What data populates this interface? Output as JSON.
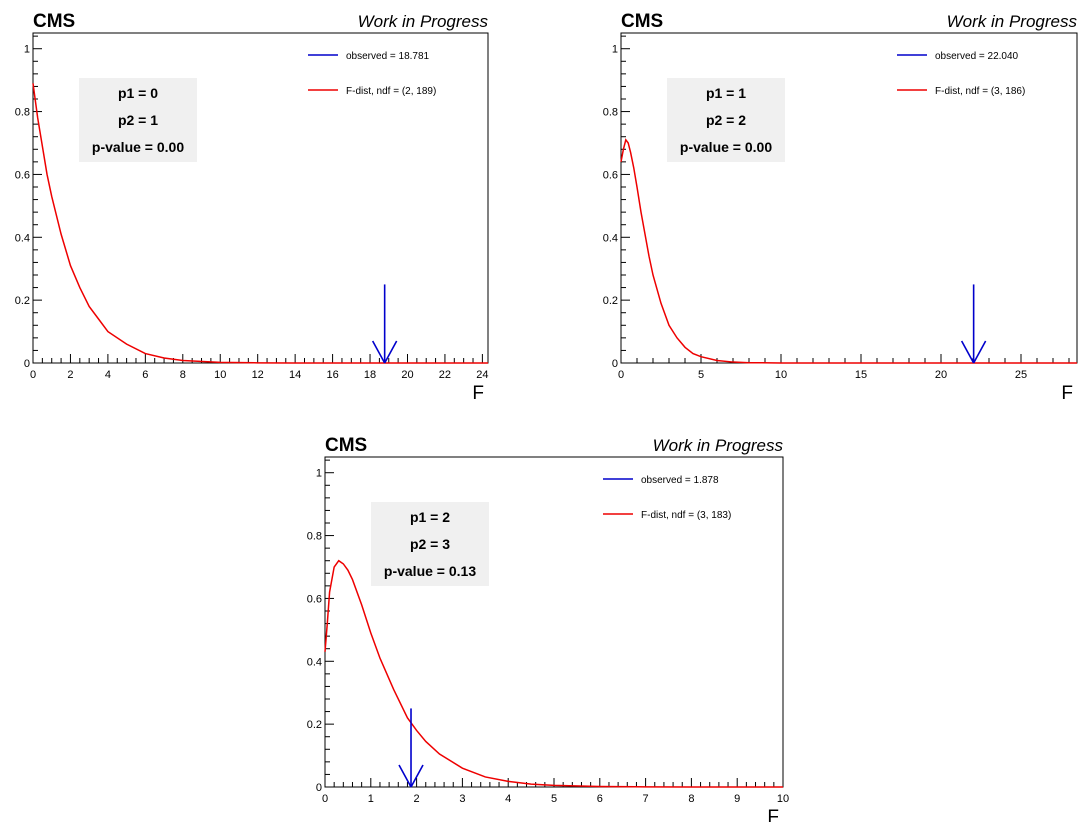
{
  "chart_data": [
    {
      "type": "line",
      "label_left": "CMS",
      "label_right": "Work in Progress",
      "xlabel": "F",
      "ylabel": "",
      "xlim": [
        0,
        24.3
      ],
      "ylim": [
        0,
        1.05
      ],
      "x_ticks": [
        "0",
        "2",
        "4",
        "6",
        "8",
        "10",
        "12",
        "14",
        "16",
        "18",
        "20",
        "22",
        "24"
      ],
      "x_tick_values": [
        0,
        2,
        4,
        6,
        8,
        10,
        12,
        14,
        16,
        18,
        20,
        22,
        24
      ],
      "y_ticks": [
        "0",
        "0.2",
        "0.4",
        "0.6",
        "0.8",
        "1"
      ],
      "y_tick_values": [
        0,
        0.2,
        0.4,
        0.6,
        0.8,
        1
      ],
      "info_box": [
        "p1 = 0",
        "p2 = 1",
        "p-value = 0.00"
      ],
      "legend": [
        {
          "label": "observed = 18.781",
          "color": "#0000cc"
        },
        {
          "label": "F-dist, ndf = (2, 189)",
          "color": "#ee0000"
        }
      ],
      "observed": 18.781,
      "series": [
        {
          "name": "F-dist, ndf = (2, 189)",
          "color": "#ee0000",
          "x": [
            0,
            0.25,
            0.5,
            0.75,
            1,
            1.5,
            2,
            2.5,
            3,
            3.5,
            4,
            5,
            6,
            7,
            8,
            10,
            12,
            14,
            16,
            18,
            20,
            22,
            24,
            24.3
          ],
          "y": [
            0.89,
            0.78,
            0.69,
            0.6,
            0.53,
            0.41,
            0.31,
            0.24,
            0.18,
            0.14,
            0.1,
            0.06,
            0.03,
            0.016,
            0.008,
            0.002,
            0.0005,
            0.0001,
            0,
            0,
            0,
            0,
            0,
            0
          ]
        }
      ]
    },
    {
      "type": "line",
      "label_left": "CMS",
      "label_right": "Work in Progress",
      "xlabel": "F",
      "ylabel": "",
      "xlim": [
        0,
        28.5
      ],
      "ylim": [
        0,
        1.05
      ],
      "x_ticks": [
        "0",
        "5",
        "10",
        "15",
        "20",
        "25"
      ],
      "x_tick_values": [
        0,
        5,
        10,
        15,
        20,
        25
      ],
      "y_ticks": [
        "0",
        "0.2",
        "0.4",
        "0.6",
        "0.8",
        "1"
      ],
      "y_tick_values": [
        0,
        0.2,
        0.4,
        0.6,
        0.8,
        1
      ],
      "info_box": [
        "p1 = 1",
        "p2 = 2",
        "p-value = 0.00"
      ],
      "legend": [
        {
          "label": "observed = 22.040",
          "color": "#0000cc"
        },
        {
          "label": "F-dist, ndf = (3, 186)",
          "color": "#ee0000"
        }
      ],
      "observed": 22.04,
      "series": [
        {
          "name": "F-dist, ndf = (3, 186)",
          "color": "#ee0000",
          "x": [
            0,
            0.15,
            0.3,
            0.45,
            0.6,
            0.8,
            1,
            1.25,
            1.5,
            1.75,
            2,
            2.5,
            3,
            3.5,
            4,
            4.5,
            5,
            6,
            7,
            8,
            10,
            15,
            20,
            25,
            28.5
          ],
          "y": [
            0.64,
            0.68,
            0.71,
            0.7,
            0.67,
            0.62,
            0.56,
            0.48,
            0.41,
            0.34,
            0.28,
            0.19,
            0.12,
            0.08,
            0.05,
            0.03,
            0.02,
            0.008,
            0.003,
            0.001,
            0.0002,
            0,
            0,
            0,
            0
          ]
        }
      ]
    },
    {
      "type": "line",
      "label_left": "CMS",
      "label_right": "Work in Progress",
      "xlabel": "F",
      "ylabel": "",
      "xlim": [
        0,
        10
      ],
      "ylim": [
        0,
        1.05
      ],
      "x_ticks": [
        "0",
        "1",
        "2",
        "3",
        "4",
        "5",
        "6",
        "7",
        "8",
        "9",
        "10"
      ],
      "x_tick_values": [
        0,
        1,
        2,
        3,
        4,
        5,
        6,
        7,
        8,
        9,
        10
      ],
      "y_ticks": [
        "0",
        "0.2",
        "0.4",
        "0.6",
        "0.8",
        "1"
      ],
      "y_tick_values": [
        0,
        0.2,
        0.4,
        0.6,
        0.8,
        1
      ],
      "info_box": [
        "p1 = 2",
        "p2 = 3",
        "p-value = 0.13"
      ],
      "legend": [
        {
          "label": "observed = 1.878",
          "color": "#0000cc"
        },
        {
          "label": "F-dist, ndf = (3, 183)",
          "color": "#ee0000"
        }
      ],
      "observed": 1.878,
      "series": [
        {
          "name": "F-dist, ndf = (3, 183)",
          "color": "#ee0000",
          "x": [
            0,
            0.05,
            0.1,
            0.2,
            0.3,
            0.4,
            0.5,
            0.6,
            0.8,
            1,
            1.2,
            1.5,
            1.8,
            2,
            2.2,
            2.5,
            3,
            3.5,
            4,
            4.5,
            5,
            6,
            7,
            8,
            9,
            10
          ],
          "y": [
            0.43,
            0.52,
            0.62,
            0.7,
            0.72,
            0.71,
            0.69,
            0.66,
            0.58,
            0.49,
            0.41,
            0.31,
            0.22,
            0.18,
            0.145,
            0.105,
            0.06,
            0.032,
            0.018,
            0.009,
            0.005,
            0.0015,
            0.0004,
            0.0001,
            0,
            0
          ]
        }
      ]
    }
  ]
}
